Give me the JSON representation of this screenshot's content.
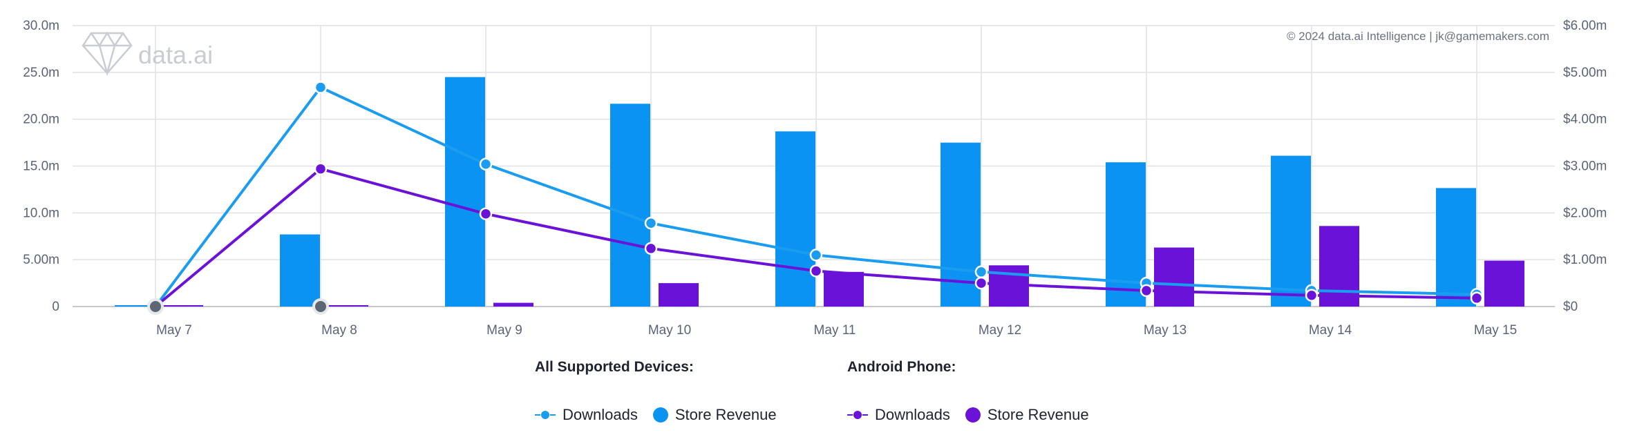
{
  "chart_data": {
    "type": "bar+line",
    "categories": [
      "May 7",
      "May 8",
      "May 9",
      "May 10",
      "May 11",
      "May 12",
      "May 13",
      "May 14",
      "May 15"
    ],
    "left_axis": {
      "ticks": [
        "0",
        "5.00m",
        "10.0m",
        "15.0m",
        "20.0m",
        "25.0m",
        "30.0m"
      ],
      "ylim": [
        0,
        30000000
      ]
    },
    "right_axis": {
      "ticks": [
        "$0",
        "$1.00m",
        "$2.00m",
        "$3.00m",
        "$4.00m",
        "$5.00m",
        "$6.00m"
      ],
      "ylim": [
        0,
        6000000
      ]
    },
    "series": [
      {
        "name": "Downloads",
        "group": "All Supported Devices",
        "type": "line",
        "axis": "left",
        "color": "#1a9cf0",
        "values": [
          0,
          23400000,
          15200000,
          8900000,
          5500000,
          3700000,
          2500000,
          1700000,
          1300000
        ]
      },
      {
        "name": "Downloads",
        "group": "Android Phone",
        "type": "line",
        "axis": "left",
        "color": "#6b12d9",
        "values": [
          0,
          14700000,
          9900000,
          6200000,
          3800000,
          2500000,
          1700000,
          1200000,
          900000
        ]
      },
      {
        "name": "Store Revenue",
        "group": "All Supported Devices",
        "type": "bar",
        "axis": "right",
        "color": "#0a93f3",
        "values": [
          0,
          1540000,
          4900000,
          4330000,
          3740000,
          3500000,
          3080000,
          3220000,
          2530000
        ]
      },
      {
        "name": "Store Revenue",
        "group": "Android Phone",
        "type": "bar",
        "axis": "right",
        "color": "#6b12d9",
        "values": [
          0,
          0,
          80000,
          500000,
          740000,
          880000,
          1260000,
          1720000,
          980000
        ]
      }
    ],
    "grid": true
  },
  "watermark": {
    "text": "data.ai"
  },
  "credit": "© 2024 data.ai Intelligence | jk@gamemakers.com",
  "legend": {
    "groups": [
      {
        "title": "All Supported Devices:",
        "line_label": "Downloads",
        "bar_label": "Store Revenue",
        "color": "#1a9cf0"
      },
      {
        "title": "Android Phone:",
        "line_label": "Downloads",
        "bar_label": "Store Revenue",
        "color": "#6b12d9"
      }
    ]
  }
}
